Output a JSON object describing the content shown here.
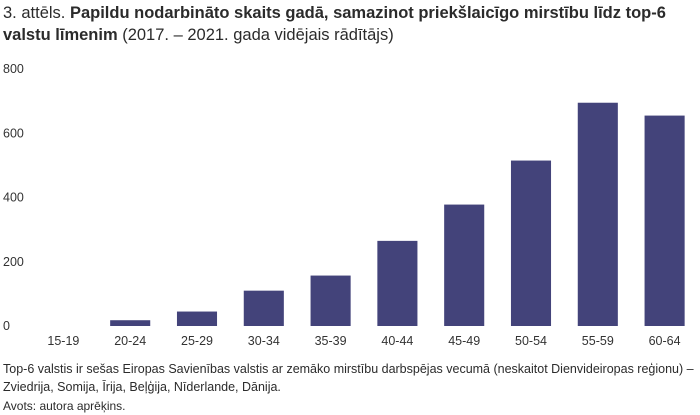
{
  "title": {
    "prefix": "3. attēls. ",
    "bold": "Papildu nodarbināto skaits gadā, samazinot priekšlaicīgo mirstību līdz top-6 valstu līmenim",
    "suffix": " (2017. – 2021. gada vidējais rādītājs)"
  },
  "note": "Top-6 valstis ir sešas Eiropas Savienības valstis ar zemāko mirstību darbspējas vecumā (neskaitot Dienvideiropas reģionu) – Zviedrija, Somija, Īrija, Beļģija, Nīderlande, Dānija.",
  "source": "Avots: autora aprēķins.",
  "chart_data": {
    "type": "bar",
    "title": "Papildu nodarbināto skaits gadā, samazinot priekšlaicīgo mirstību līdz top-6 valstu līmenim",
    "xlabel": "",
    "ylabel": "",
    "categories": [
      "15-19",
      "20-24",
      "25-29",
      "30-34",
      "35-39",
      "40-44",
      "45-49",
      "50-54",
      "55-59",
      "60-64"
    ],
    "values": [
      0,
      18,
      45,
      110,
      157,
      265,
      378,
      515,
      695,
      655
    ],
    "ylim": [
      0,
      800
    ],
    "yticks": [
      0,
      200,
      400,
      600,
      800
    ],
    "grid": false,
    "bar_color": "#43437a"
  }
}
